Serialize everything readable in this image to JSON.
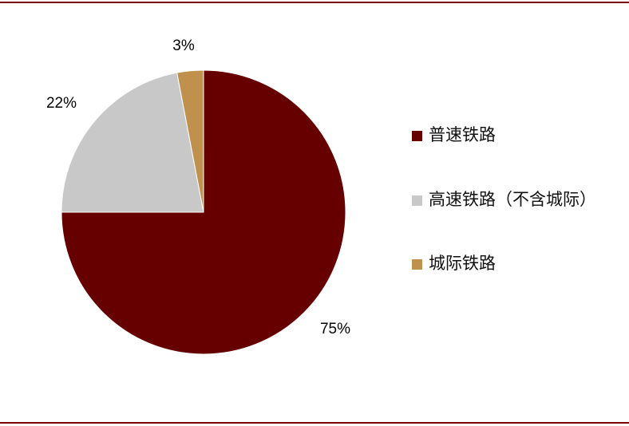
{
  "chart_data": {
    "type": "pie",
    "title": "",
    "start": "top",
    "direction": "clockwise",
    "slices": [
      {
        "name": "普速铁路",
        "value": 75,
        "label": "75%",
        "color": "#660000"
      },
      {
        "name": "高速铁路（不含城际）",
        "value": 22,
        "label": "22%",
        "color": "#c8c8c8"
      },
      {
        "name": "城际铁路",
        "value": 3,
        "label": "3%",
        "color": "#c0904d"
      }
    ],
    "legend_placement": "right"
  }
}
